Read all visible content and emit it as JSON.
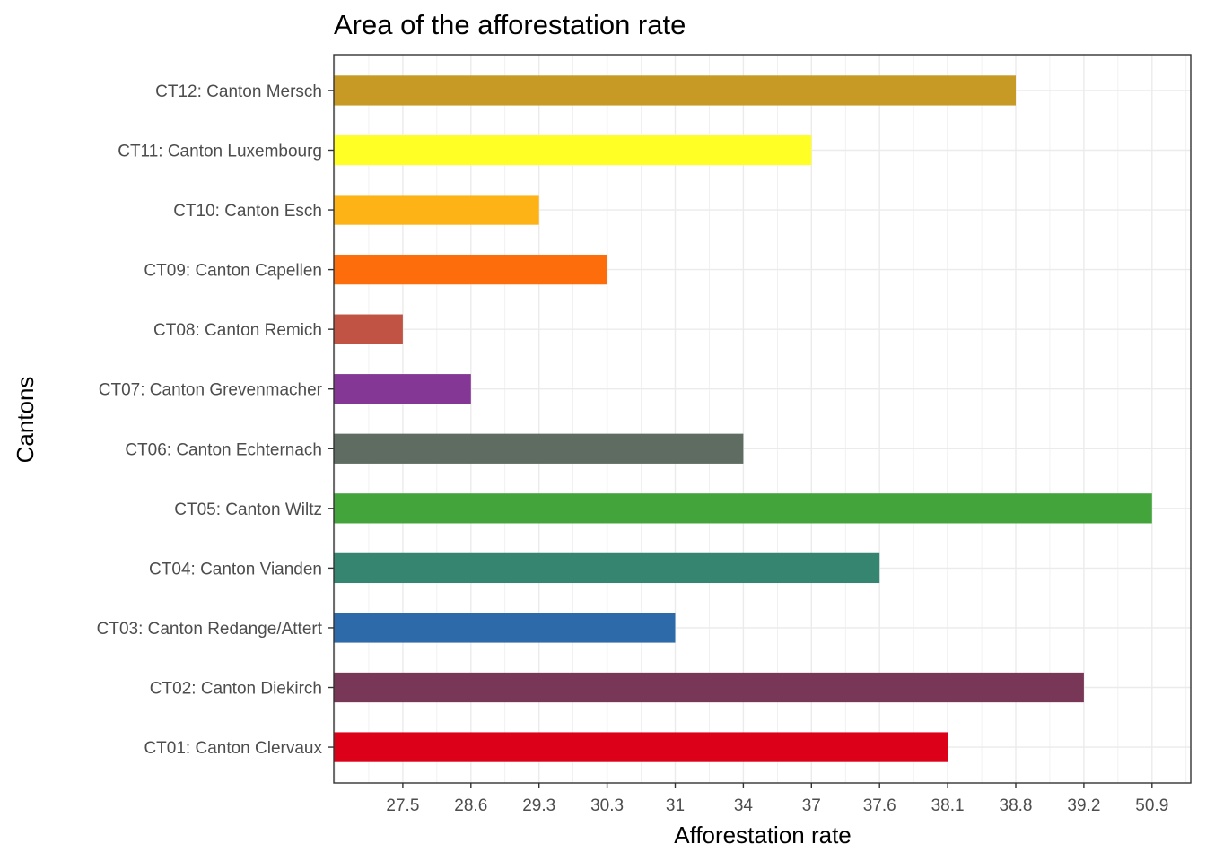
{
  "chart_data": {
    "type": "bar",
    "orientation": "horizontal",
    "title": "Area of the afforestation rate",
    "xlabel": "Afforestation rate",
    "ylabel": "Cantons",
    "x_scale": "discrete (one tick per distinct value, ordered)",
    "x_ticks": [
      "27.5",
      "28.6",
      "29.3",
      "30.3",
      "31",
      "34",
      "37",
      "37.6",
      "38.1",
      "38.8",
      "39.2",
      "50.9"
    ],
    "grid": true,
    "legend": "none",
    "bars": [
      {
        "category": "CT01: Canton Clervaux",
        "value": 38.1,
        "color": "#DC0019"
      },
      {
        "category": "CT02: Canton Diekirch",
        "value": 39.2,
        "color": "#783756"
      },
      {
        "category": "CT03: Canton Redange/Attert",
        "value": 31,
        "color": "#2D6AAA"
      },
      {
        "category": "CT04: Canton Vianden",
        "value": 37.6,
        "color": "#358570"
      },
      {
        "category": "CT05: Canton Wiltz",
        "value": 50.9,
        "color": "#43A43B"
      },
      {
        "category": "CT06: Canton Echternach",
        "value": 34,
        "color": "#5E6C62"
      },
      {
        "category": "CT07: Canton Grevenmacher",
        "value": 28.6,
        "color": "#843795"
      },
      {
        "category": "CT08: Canton Remich",
        "value": 27.5,
        "color": "#C05344"
      },
      {
        "category": "CT09: Canton Capellen",
        "value": 30.3,
        "color": "#FD6D0C"
      },
      {
        "category": "CT10: Canton Esch",
        "value": 29.3,
        "color": "#FDB216"
      },
      {
        "category": "CT11: Canton Luxembourg",
        "value": 37,
        "color": "#FFFF26"
      },
      {
        "category": "CT12: Canton Mersch",
        "value": 38.8,
        "color": "#C79A25"
      }
    ]
  }
}
